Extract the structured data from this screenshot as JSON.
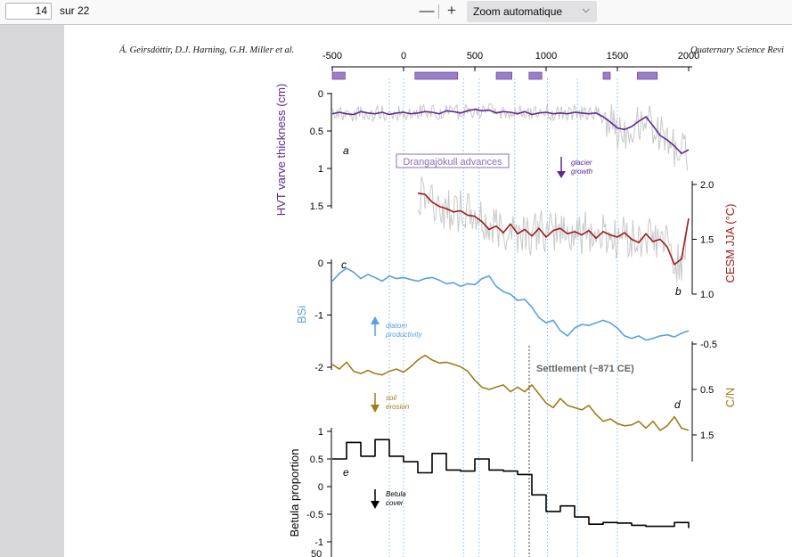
{
  "toolbar": {
    "page_number": "14",
    "page_total": "sur 22",
    "zoom_out": "—",
    "zoom_in": "+",
    "zoom_label": "Zoom automatique",
    "zoom_chevron": "⌵"
  },
  "document": {
    "header_left": "Á. Geirsdóttir, D.J. Harning, G.H. Miller et al.",
    "header_right": "Quaternary Science Revi"
  },
  "figure": {
    "x_ticks": [
      "-500",
      "0",
      "500",
      "1000",
      "1500",
      "2000"
    ],
    "panel_letters": {
      "a": "a",
      "b": "b",
      "c": "c",
      "d": "d",
      "e": "e"
    },
    "annotations": {
      "drangajokull": "Drangajökull advances",
      "glacier_1": "glacier",
      "glacier_2": "growth",
      "diatom_1": "diatom",
      "diatom_2": "productivity",
      "settlement": "Settlement (~871 CE)",
      "soil_1": "soil",
      "soil_2": "erosion",
      "betula_1": "Betula",
      "betula_2": "cover"
    },
    "colors": {
      "varve": "#5b2a91",
      "temp": "#9b1c1c",
      "bsi": "#5aa0e0",
      "cn": "#a07d17",
      "betula": "#000000",
      "raw": "#c8c8c8",
      "advance_bar": "#9b7fc6"
    }
  },
  "chart_data": [
    {
      "type": "line",
      "panel": "a",
      "ylabel": "HVT varve thickness (cm)",
      "ylim": [
        0,
        1.5
      ],
      "y_ticks": [
        "0",
        "0.5",
        "1",
        "1.5"
      ],
      "x": [
        -500,
        -450,
        -400,
        -350,
        -300,
        -250,
        -200,
        -150,
        -100,
        -50,
        0,
        50,
        100,
        150,
        200,
        250,
        300,
        350,
        400,
        450,
        500,
        550,
        600,
        650,
        700,
        750,
        800,
        850,
        900,
        950,
        1000,
        1050,
        1100,
        1150,
        1200,
        1250,
        1300,
        1350,
        1400,
        1450,
        1500,
        1550,
        1600,
        1650,
        1700,
        1750,
        1800,
        1850,
        1900,
        1950,
        2000
      ],
      "series": [
        {
          "name": "",
          "values": [
            0.27,
            0.25,
            0.27,
            0.28,
            0.24,
            0.26,
            0.27,
            0.25,
            0.28,
            0.26,
            0.25,
            0.27,
            0.26,
            0.24,
            0.25,
            0.27,
            0.23,
            0.24,
            0.26,
            0.23,
            0.21,
            0.23,
            0.22,
            0.26,
            0.24,
            0.25,
            0.27,
            0.24,
            0.28,
            0.26,
            0.25,
            0.27,
            0.26,
            0.27,
            0.25,
            0.26,
            0.27,
            0.26,
            0.31,
            0.38,
            0.46,
            0.48,
            0.44,
            0.37,
            0.31,
            0.43,
            0.56,
            0.62,
            0.7,
            0.8,
            0.75
          ]
        }
      ],
      "advances": [
        [
          -500,
          -410
        ],
        [
          80,
          380
        ],
        [
          650,
          760
        ],
        [
          880,
          970
        ],
        [
          1400,
          1450
        ],
        [
          1640,
          1780
        ]
      ]
    },
    {
      "type": "line",
      "panel": "b",
      "ylabel": "CESM JJA (°C)",
      "ylim": [
        1.0,
        2.0
      ],
      "y_ticks": [
        "1.0",
        "1.5",
        "2.0"
      ],
      "x": [
        100,
        150,
        200,
        250,
        300,
        350,
        400,
        450,
        500,
        550,
        600,
        650,
        700,
        750,
        800,
        850,
        900,
        950,
        1000,
        1050,
        1100,
        1150,
        1200,
        1250,
        1300,
        1350,
        1400,
        1450,
        1500,
        1550,
        1600,
        1650,
        1700,
        1750,
        1800,
        1850,
        1900,
        1950,
        2000
      ],
      "series": [
        {
          "name": "",
          "values": [
            1.92,
            1.91,
            1.84,
            1.8,
            1.78,
            1.75,
            1.76,
            1.72,
            1.71,
            1.66,
            1.59,
            1.62,
            1.56,
            1.64,
            1.55,
            1.59,
            1.53,
            1.6,
            1.52,
            1.58,
            1.6,
            1.55,
            1.57,
            1.54,
            1.58,
            1.51,
            1.57,
            1.54,
            1.52,
            1.56,
            1.5,
            1.47,
            1.55,
            1.48,
            1.5,
            1.43,
            1.27,
            1.32,
            1.69
          ]
        }
      ]
    },
    {
      "type": "line",
      "panel": "c",
      "ylabel": "BSi",
      "ylim": [
        -2,
        0
      ],
      "y_ticks": [
        "0",
        "-1",
        "-2"
      ],
      "x": [
        -500,
        -450,
        -400,
        -350,
        -300,
        -250,
        -200,
        -150,
        -100,
        -50,
        0,
        50,
        100,
        150,
        200,
        250,
        300,
        350,
        400,
        450,
        500,
        550,
        600,
        650,
        700,
        750,
        800,
        850,
        900,
        950,
        1000,
        1050,
        1100,
        1150,
        1200,
        1250,
        1300,
        1350,
        1400,
        1450,
        1500,
        1550,
        1600,
        1650,
        1700,
        1750,
        1800,
        1850,
        1900,
        1950,
        2000
      ],
      "series": [
        {
          "name": "",
          "values": [
            -0.35,
            -0.2,
            -0.1,
            -0.18,
            -0.3,
            -0.22,
            -0.28,
            -0.35,
            -0.25,
            -0.3,
            -0.28,
            -0.32,
            -0.35,
            -0.3,
            -0.28,
            -0.33,
            -0.4,
            -0.38,
            -0.45,
            -0.4,
            -0.42,
            -0.3,
            -0.25,
            -0.45,
            -0.55,
            -0.6,
            -0.72,
            -0.7,
            -0.85,
            -1.05,
            -1.15,
            -1.1,
            -1.3,
            -1.4,
            -1.25,
            -1.18,
            -1.2,
            -1.15,
            -1.1,
            -1.15,
            -1.25,
            -1.4,
            -1.45,
            -1.4,
            -1.48,
            -1.45,
            -1.4,
            -1.38,
            -1.42,
            -1.35,
            -1.3
          ]
        }
      ]
    },
    {
      "type": "line",
      "panel": "d",
      "ylabel": "C/N",
      "ylim": [
        -0.5,
        1.5
      ],
      "inverted": true,
      "y_ticks": [
        "-0.5",
        "0.5",
        "1.5"
      ],
      "x": [
        -500,
        -450,
        -400,
        -350,
        -300,
        -250,
        -200,
        -150,
        -100,
        -50,
        0,
        50,
        100,
        150,
        200,
        250,
        300,
        350,
        400,
        450,
        500,
        550,
        600,
        650,
        700,
        750,
        800,
        850,
        900,
        950,
        1000,
        1050,
        1100,
        1150,
        1200,
        1250,
        1300,
        1350,
        1400,
        1450,
        1500,
        1550,
        1600,
        1650,
        1700,
        1750,
        1800,
        1850,
        1900,
        1950,
        2000
      ],
      "series": [
        {
          "name": "",
          "values": [
            -0.05,
            0.05,
            -0.1,
            0.1,
            0.15,
            0.08,
            0.15,
            0.18,
            0.1,
            0.05,
            0.12,
            0.0,
            -0.15,
            -0.25,
            -0.15,
            -0.08,
            -0.1,
            -0.05,
            0.0,
            0.1,
            0.3,
            0.45,
            0.5,
            0.45,
            0.4,
            0.55,
            0.45,
            0.55,
            0.4,
            0.6,
            0.8,
            0.9,
            0.7,
            0.85,
            0.9,
            0.95,
            0.85,
            1.05,
            1.2,
            1.15,
            1.25,
            1.3,
            1.28,
            1.2,
            1.35,
            1.2,
            1.4,
            1.3,
            1.1,
            1.35,
            1.4
          ]
        }
      ]
    },
    {
      "type": "line",
      "panel": "e",
      "ylabel": "Betula proportion",
      "ylim": [
        -1,
        1
      ],
      "y_ticks": [
        "1",
        "0.5",
        "0",
        "-0.5",
        "-1"
      ],
      "x": [
        -500,
        -400,
        -300,
        -200,
        -100,
        0,
        100,
        200,
        300,
        400,
        500,
        600,
        700,
        800,
        900,
        1000,
        1100,
        1200,
        1300,
        1400,
        1500,
        1600,
        1700,
        1800,
        1900,
        2000
      ],
      "series": [
        {
          "name": "",
          "values": [
            0.5,
            0.8,
            0.55,
            0.85,
            0.55,
            0.45,
            0.25,
            0.6,
            0.3,
            0.28,
            0.5,
            0.3,
            0.28,
            0.22,
            -0.15,
            -0.45,
            -0.35,
            -0.55,
            -0.68,
            -0.65,
            -0.66,
            -0.7,
            -0.72,
            -0.72,
            -0.65,
            -0.75
          ]
        }
      ],
      "tick_below": "50"
    }
  ]
}
